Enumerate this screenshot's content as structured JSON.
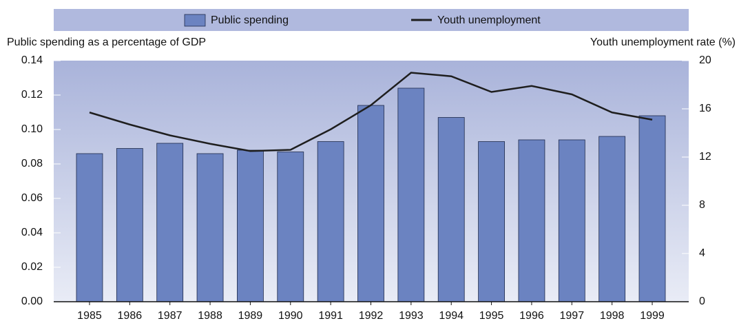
{
  "chart_data": {
    "type": "bar_line",
    "legend_position": "top",
    "y_label": "Public spending as a percentage of GDP",
    "y2_label": "Youth unemployment rate (%)",
    "categories": [
      "1985",
      "1986",
      "1987",
      "1988",
      "1989",
      "1990",
      "1991",
      "1992",
      "1993",
      "1994",
      "1995",
      "1996",
      "1997",
      "1998",
      "1999"
    ],
    "series": [
      {
        "name": "Public spending",
        "type": "bar",
        "color": "#6b83c1",
        "values": [
          0.086,
          0.089,
          0.092,
          0.086,
          0.088,
          0.087,
          0.093,
          0.114,
          0.124,
          0.107,
          0.093,
          0.094,
          0.094,
          0.096,
          0.108
        ]
      },
      {
        "name": "Youth unemployment",
        "type": "line",
        "axis": "y2",
        "color": "#1e1e1e",
        "values": [
          15.7,
          14.7,
          13.8,
          13.1,
          12.5,
          12.6,
          14.3,
          16.3,
          19.0,
          18.7,
          17.4,
          17.9,
          17.2,
          15.7,
          15.1
        ]
      }
    ],
    "ylim": [
      0,
      0.14
    ],
    "yticks": [
      {
        "value": 0,
        "label": "0.00"
      },
      0.02,
      0.04,
      0.06,
      0.08,
      {
        "value": 0.1,
        "label": "0.10"
      },
      0.12,
      0.14
    ],
    "y2lim": [
      0,
      20
    ],
    "y2ticks": [
      0,
      4,
      8,
      12,
      16,
      20
    ]
  }
}
